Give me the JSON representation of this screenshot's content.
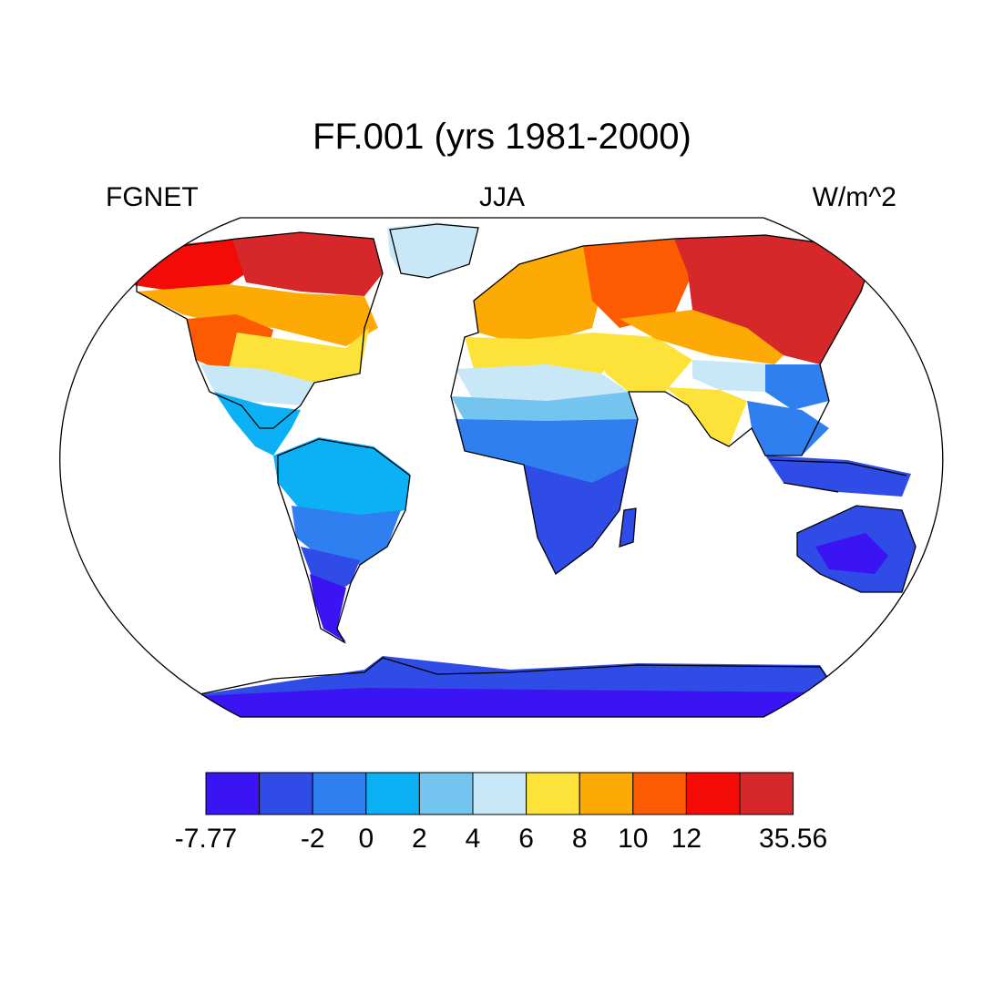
{
  "title": "FF.001 (yrs 1981-2000)",
  "left_subtitle": "FGNET",
  "center_subtitle": "JJA",
  "right_subtitle": "W/m^2",
  "colorbar": {
    "colors": [
      "#3a14f2",
      "#2f4ce6",
      "#2f7ff0",
      "#0cb0f5",
      "#73c4ee",
      "#c8e8f7",
      "#fde23a",
      "#fdaa05",
      "#fc5b02",
      "#f40a06",
      "#d6272b"
    ],
    "labels": [
      "-7.77",
      "-2",
      "0",
      "2",
      "4",
      "6",
      "8",
      "10",
      "12",
      "35.56"
    ],
    "label_edges": [
      0,
      2,
      3,
      4,
      5,
      6,
      7,
      8,
      9,
      11
    ]
  },
  "map": {
    "projection": "Robinson",
    "regions": [
      {
        "name": "Canada-Arctic",
        "color": "#d6272b"
      },
      {
        "name": "Alaska",
        "color": "#f40a06"
      },
      {
        "name": "North America interior",
        "color": "#fdaa05"
      },
      {
        "name": "US Plains",
        "color": "#fc5b02"
      },
      {
        "name": "US South",
        "color": "#fde23a"
      },
      {
        "name": "Gulf Coast",
        "color": "#c8e8f7"
      },
      {
        "name": "Greenland",
        "color": "#c8e8f7"
      },
      {
        "name": "Central America",
        "color": "#0cb0f5"
      },
      {
        "name": "South America north",
        "color": "#0cb0f5"
      },
      {
        "name": "South America mid",
        "color": "#2f7ff0"
      },
      {
        "name": "South America south",
        "color": "#2f4ce6"
      },
      {
        "name": "Patagonia",
        "color": "#3a14f2"
      },
      {
        "name": "Europe",
        "color": "#fdaa05"
      },
      {
        "name": "Mediterranean",
        "color": "#fde23a"
      },
      {
        "name": "Sahara",
        "color": "#c8e8f7"
      },
      {
        "name": "Sahel",
        "color": "#73c4ee"
      },
      {
        "name": "Central Africa",
        "color": "#2f7ff0"
      },
      {
        "name": "Southern Africa",
        "color": "#2f4ce6"
      },
      {
        "name": "Madagascar",
        "color": "#2f4ce6"
      },
      {
        "name": "Middle East",
        "color": "#fde23a"
      },
      {
        "name": "Russia west",
        "color": "#fc5b02"
      },
      {
        "name": "Siberia",
        "color": "#d6272b"
      },
      {
        "name": "Central Asia",
        "color": "#fdaa05"
      },
      {
        "name": "Tibet",
        "color": "#c8e8f7"
      },
      {
        "name": "India",
        "color": "#2f7ff0"
      },
      {
        "name": "China",
        "color": "#fde23a"
      },
      {
        "name": "Southeast Asia",
        "color": "#2f7ff0"
      },
      {
        "name": "Indonesia",
        "color": "#2f4ce6"
      },
      {
        "name": "Australia",
        "color": "#2f4ce6"
      },
      {
        "name": "Australia interior",
        "color": "#3a14f2"
      },
      {
        "name": "New Zealand",
        "color": "#2f4ce6"
      },
      {
        "name": "Antarctica",
        "color": "#3a14f2"
      },
      {
        "name": "Antarctica coast",
        "color": "#2f4ce6"
      }
    ]
  }
}
